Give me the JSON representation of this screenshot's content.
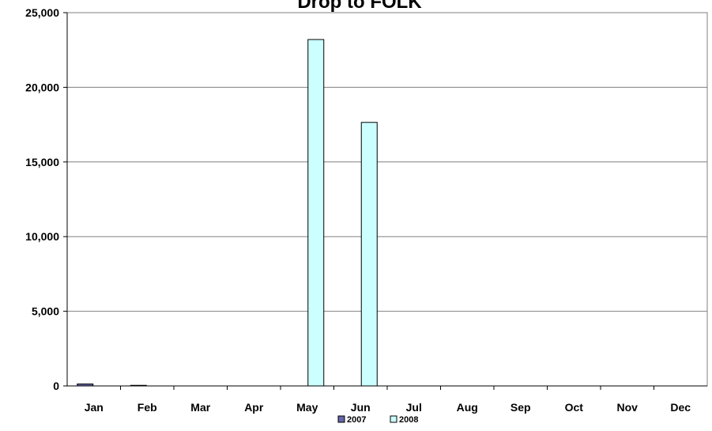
{
  "chart_data": {
    "type": "bar",
    "title": "Drop to FOLK",
    "xlabel": "",
    "ylabel": "",
    "categories": [
      "Jan",
      "Feb",
      "Mar",
      "Apr",
      "May",
      "Jun",
      "Jul",
      "Aug",
      "Sep",
      "Oct",
      "Nov",
      "Dec"
    ],
    "series": [
      {
        "name": "2007",
        "values": [
          130,
          40,
          0,
          0,
          0,
          0,
          0,
          0,
          0,
          0,
          0,
          0
        ],
        "color": "#6666aa"
      },
      {
        "name": "2008",
        "values": [
          0,
          0,
          0,
          0,
          23200,
          17650,
          0,
          0,
          0,
          0,
          0,
          0
        ],
        "color": "#ccffff"
      }
    ],
    "ylim": [
      0,
      25000
    ],
    "yticks": [
      "0",
      "5,000",
      "10,000",
      "15,000",
      "20,000",
      "25,000"
    ],
    "grid": true,
    "legend_position": "bottom"
  }
}
